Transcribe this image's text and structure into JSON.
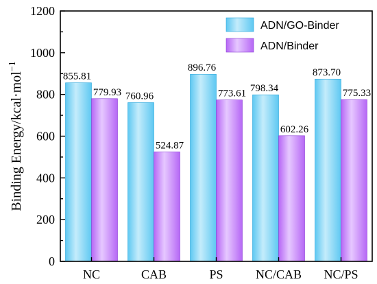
{
  "chart_data": {
    "type": "bar",
    "categories": [
      "NC",
      "CAB",
      "PS",
      "NC/CAB",
      "NC/PS"
    ],
    "series": [
      {
        "name": "ADN/GO-Binder",
        "values": [
          855.81,
          760.96,
          896.76,
          798.34,
          873.7
        ],
        "labels": [
          "855.81",
          "760.96",
          "896.76",
          "798.34",
          "873.70"
        ],
        "color_top": "#c4ecfb",
        "color_mid": "#5ec8f2",
        "color_edge": "#2aa6db"
      },
      {
        "name": "ADN/Binder",
        "values": [
          779.93,
          524.87,
          773.61,
          602.26,
          775.33
        ],
        "labels": [
          "779.93",
          "524.87",
          "773.61",
          "602.26",
          "775.33"
        ],
        "color_top": "#e6c8ff",
        "color_mid": "#b667f5",
        "color_edge": "#8a3fd6"
      }
    ],
    "ylabel": "Binding Energy/kcal·mol",
    "ylabel_superscript": "−1",
    "ylim": [
      0,
      1200
    ],
    "yticks": [
      0,
      200,
      400,
      600,
      800,
      1000,
      1200
    ],
    "grid": false,
    "legend_position": "top-right"
  }
}
